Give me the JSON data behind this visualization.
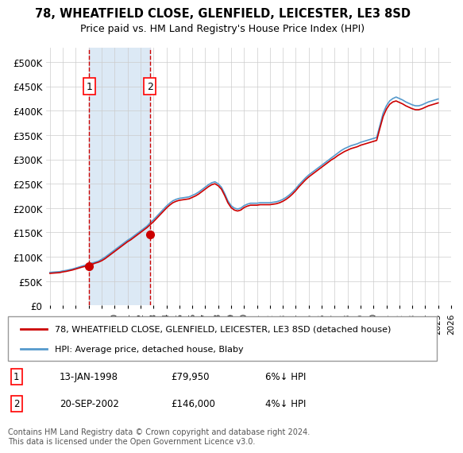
{
  "title1": "78, WHEATFIELD CLOSE, GLENFIELD, LEICESTER, LE3 8SD",
  "title2": "Price paid vs. HM Land Registry's House Price Index (HPI)",
  "xlabel": "",
  "ylabel": "",
  "ylim": [
    0,
    530000
  ],
  "yticks": [
    0,
    50000,
    100000,
    150000,
    200000,
    250000,
    300000,
    350000,
    400000,
    450000,
    500000
  ],
  "ytick_labels": [
    "£0",
    "£50K",
    "£100K",
    "£150K",
    "£200K",
    "£250K",
    "£300K",
    "£350K",
    "£400K",
    "£450K",
    "£500K"
  ],
  "transaction1": {
    "date_num": 1998.04,
    "price": 79950,
    "label": "1",
    "pct": "6%↓ HPI",
    "date_str": "13-JAN-1998"
  },
  "transaction2": {
    "date_num": 2002.72,
    "price": 146000,
    "label": "2",
    "pct": "4%↓ HPI",
    "date_str": "20-SEP-2002"
  },
  "legend_line1": "78, WHEATFIELD CLOSE, GLENFIELD, LEICESTER, LE3 8SD (detached house)",
  "legend_line2": "HPI: Average price, detached house, Blaby",
  "footnote": "Contains HM Land Registry data © Crown copyright and database right 2024.\nThis data is licensed under the Open Government Licence v3.0.",
  "line_color_red": "#cc0000",
  "line_color_blue": "#5599cc",
  "shaded_color": "#dce9f5",
  "xtick_start": 1995,
  "xtick_end": 2026
}
